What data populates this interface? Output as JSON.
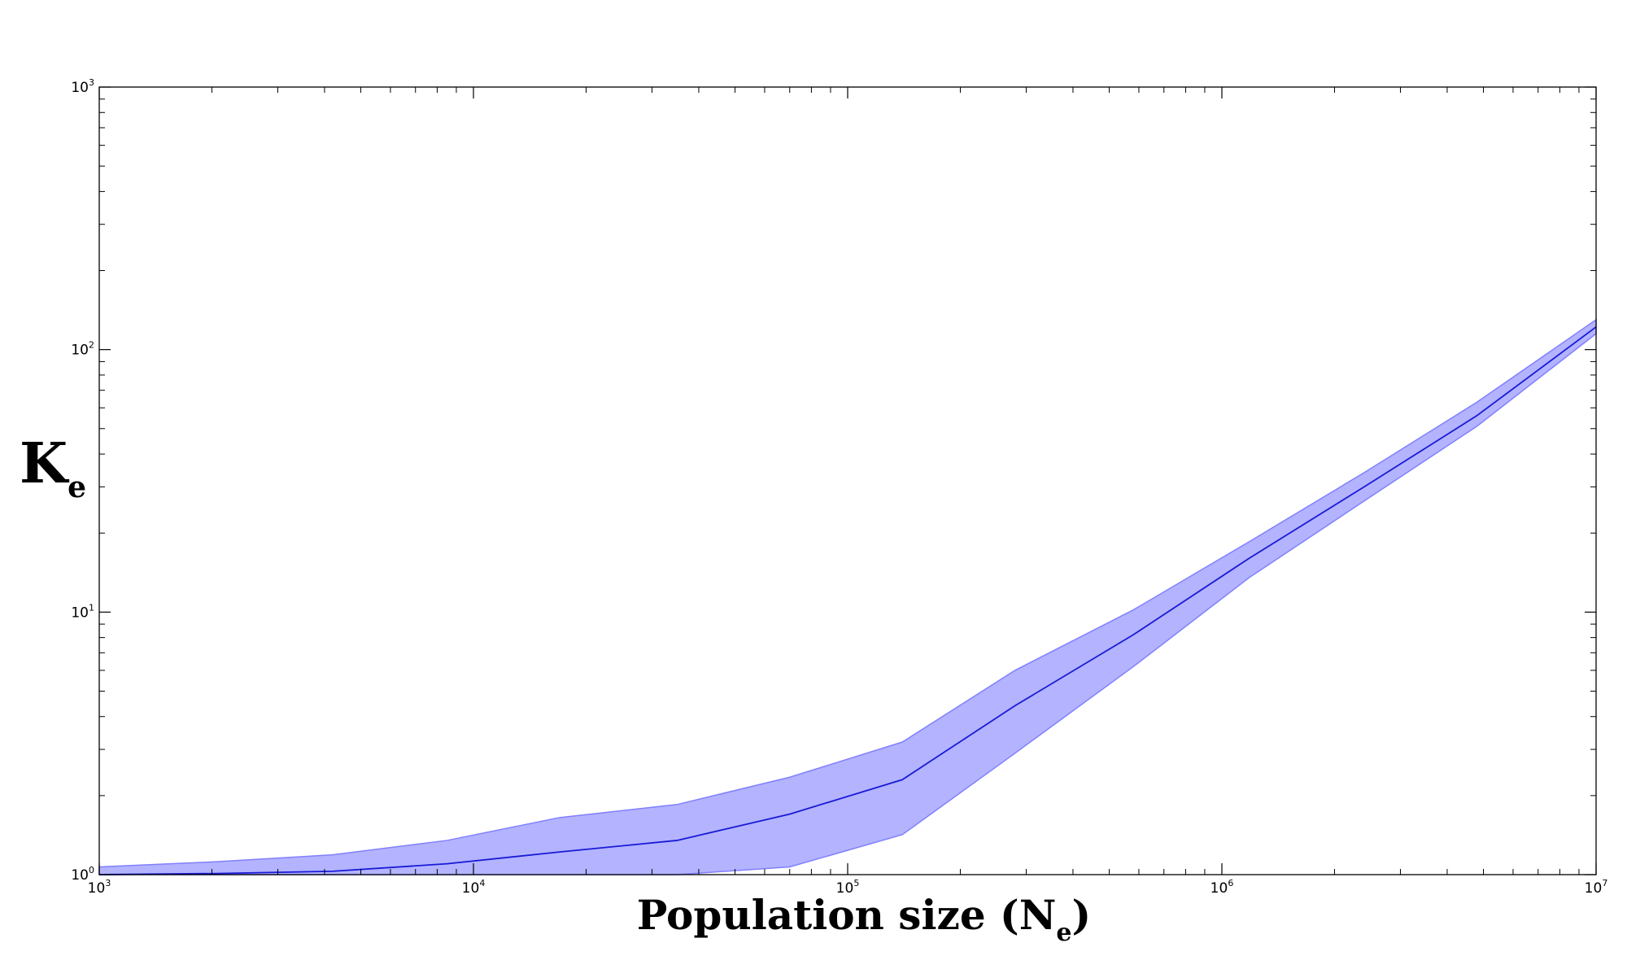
{
  "chart_data": {
    "type": "area",
    "title": "",
    "xlabel": {
      "main": "Population size (N",
      "sub": "e",
      "close": ")"
    },
    "ylabel": {
      "main": "K",
      "sub": "e"
    },
    "x_scale": "log",
    "y_scale": "log",
    "xlim": [
      1000,
      10000000
    ],
    "ylim": [
      1,
      1000
    ],
    "x_ticks": [
      {
        "value": 1000,
        "base": "10",
        "exp": "3"
      },
      {
        "value": 10000,
        "base": "10",
        "exp": "4"
      },
      {
        "value": 100000,
        "base": "10",
        "exp": "5"
      },
      {
        "value": 1000000,
        "base": "10",
        "exp": "6"
      },
      {
        "value": 10000000,
        "base": "10",
        "exp": "7"
      }
    ],
    "y_ticks": [
      {
        "value": 1,
        "base": "10",
        "exp": "0"
      },
      {
        "value": 10,
        "base": "10",
        "exp": "1"
      },
      {
        "value": 100,
        "base": "10",
        "exp": "2"
      },
      {
        "value": 1000,
        "base": "10",
        "exp": "3"
      }
    ],
    "grid": false,
    "legend": "none",
    "x": [
      1000,
      2050,
      4200,
      8500,
      17000,
      35000,
      70000,
      140000,
      280000,
      580000,
      1180000,
      2400000,
      4800000,
      10000000
    ],
    "series": [
      {
        "values": [
          1.0,
          1.01,
          1.03,
          1.1,
          1.22,
          1.35,
          1.7,
          2.3,
          4.4,
          8.2,
          16.0,
          30.0,
          56.0,
          122.0
        ],
        "upper": [
          1.07,
          1.12,
          1.19,
          1.35,
          1.65,
          1.85,
          2.35,
          3.2,
          6.0,
          10.2,
          18.5,
          34.0,
          63.0,
          130.0
        ],
        "lower": [
          1.0,
          1.0,
          1.0,
          1.0,
          1.0,
          1.0,
          1.07,
          1.42,
          2.9,
          6.2,
          13.5,
          26.5,
          51.0,
          115.0
        ],
        "line_color": "#1a1ad6",
        "band_color": "#b3b3ff",
        "band_edge_color": "#8080ff"
      }
    ]
  }
}
